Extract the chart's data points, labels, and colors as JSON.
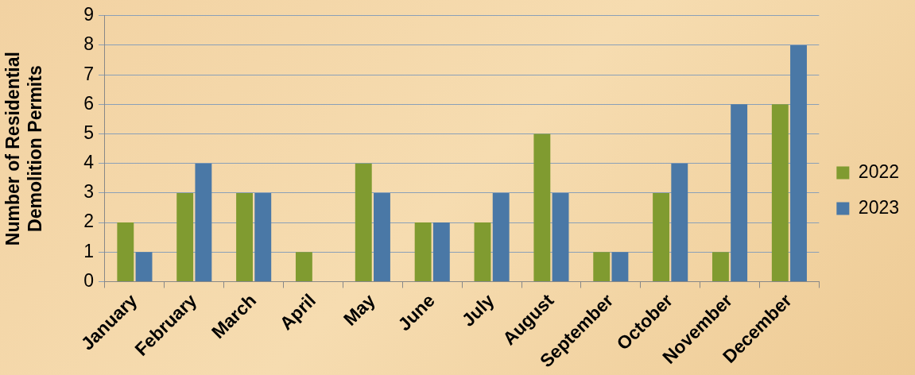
{
  "chart_data": {
    "type": "bar",
    "ylabel": "Number of Residential\nDemolition Permits",
    "categories": [
      "January",
      "February",
      "March",
      "April",
      "May",
      "June",
      "July",
      "August",
      "September",
      "October",
      "November",
      "December"
    ],
    "series": [
      {
        "name": "2022",
        "color": "#809b30",
        "values": [
          2,
          3,
          3,
          1,
          4,
          2,
          2,
          5,
          1,
          3,
          1,
          6
        ]
      },
      {
        "name": "2023",
        "color": "#4a78a6",
        "values": [
          1,
          4,
          3,
          0,
          3,
          2,
          3,
          3,
          1,
          4,
          6,
          8
        ]
      }
    ],
    "ylim": [
      0,
      9
    ],
    "yticks": [
      0,
      1,
      2,
      3,
      4,
      5,
      6,
      7,
      8,
      9
    ],
    "grid": "y",
    "legend": "right"
  }
}
